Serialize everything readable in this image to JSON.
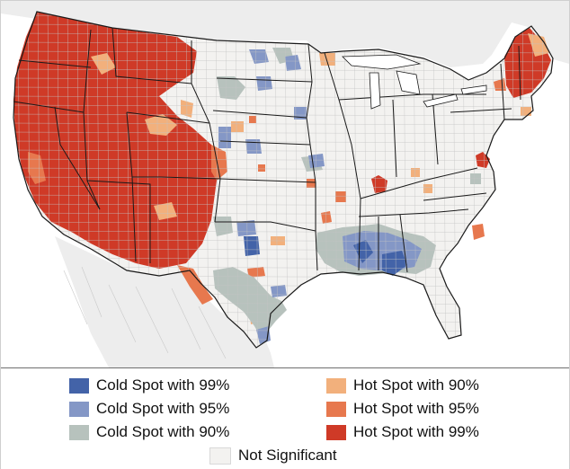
{
  "colors": {
    "cold_99": "#4363a8",
    "cold_95": "#8497c6",
    "cold_90": "#b7c2bd",
    "hot_90": "#f2b07c",
    "hot_95": "#e7784e",
    "hot_99": "#cf3a27",
    "not_significant": "#f3f2f0",
    "land_outside": "#ededed",
    "water": "#ffffff",
    "state_border": "#1a1a1a",
    "county_line": "#c4c4c4"
  },
  "legend": {
    "items": [
      {
        "key": "cold_99",
        "label": "Cold Spot with 99%"
      },
      {
        "key": "cold_95",
        "label": "Cold Spot with 95%"
      },
      {
        "key": "cold_90",
        "label": "Cold Spot with 90%"
      },
      {
        "key": "hot_90",
        "label": "Hot Spot with 90%"
      },
      {
        "key": "hot_95",
        "label": "Hot Spot with 95%"
      },
      {
        "key": "hot_99",
        "label": "Hot Spot with 99%"
      },
      {
        "key": "not_significant",
        "label": "Not Significant"
      }
    ]
  }
}
